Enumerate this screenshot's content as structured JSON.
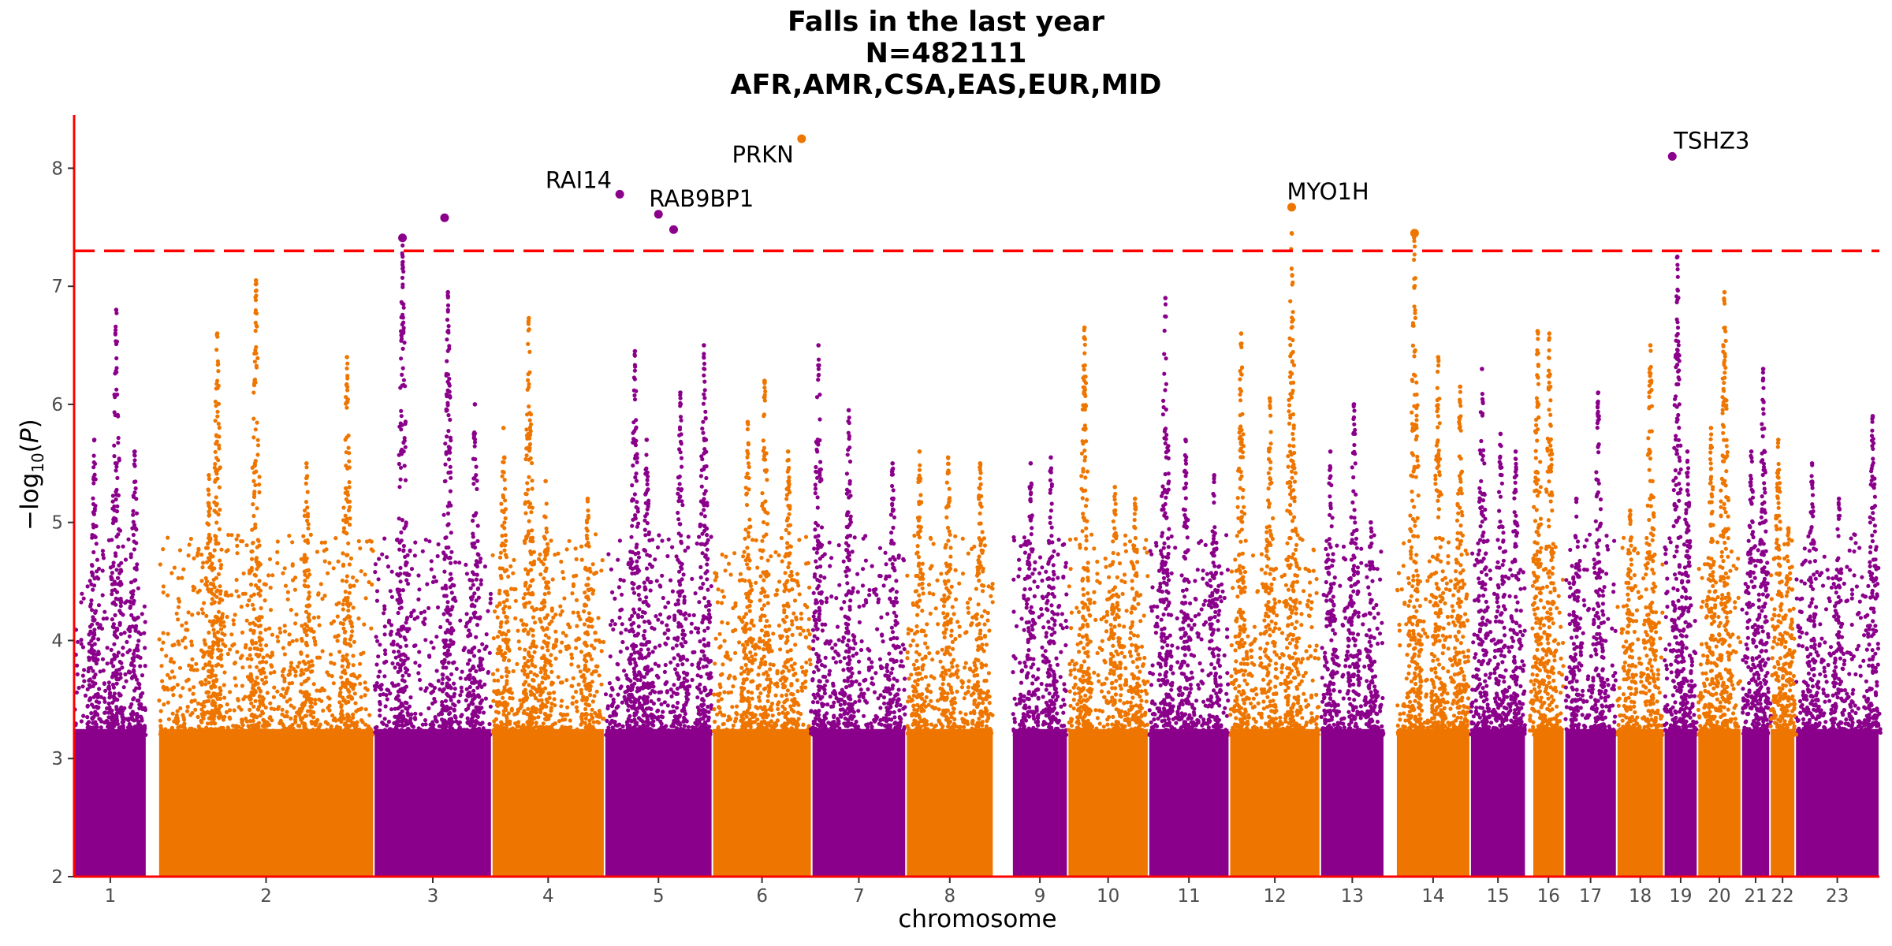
{
  "chart_data": {
    "type": "scatter",
    "subtype": "manhattan",
    "title": [
      "Falls in the last year",
      "N=482111",
      "AFR,AMR,CSA,EAS,EUR,MID"
    ],
    "xlabel": "chromosome",
    "ylabel": "−log10(P)",
    "ylim": [
      2,
      8.45
    ],
    "yticks": [
      2,
      3,
      4,
      5,
      6,
      7,
      8
    ],
    "significance_threshold": 7.3,
    "colors": {
      "odd": "#8B008B",
      "even": "#EE7600",
      "threshold": "#FF0000",
      "axis": "#FF0000"
    },
    "chromosomes": [
      {
        "label": "1",
        "x0": 0,
        "x1": 4.3,
        "max": 6.8
      },
      {
        "label": "2",
        "x0": 5.0,
        "x1": 17.8,
        "max": 7.05
      },
      {
        "label": "3",
        "x0": 17.8,
        "x1": 24.8,
        "max": 7.6
      },
      {
        "label": "4",
        "x0": 24.8,
        "x1": 31.5,
        "max": 6.8
      },
      {
        "label": "5",
        "x0": 31.5,
        "x1": 37.9,
        "max": 7.8
      },
      {
        "label": "6",
        "x0": 37.9,
        "x1": 43.8,
        "max": 8.25
      },
      {
        "label": "7",
        "x0": 43.8,
        "x1": 49.4,
        "max": 6.5
      },
      {
        "label": "8",
        "x0": 49.4,
        "x1": 54.6,
        "max": 5.6
      },
      {
        "label": "9",
        "x0": 55.7,
        "x1": 59.0,
        "max": 5.6
      },
      {
        "label": "10",
        "x0": 59.0,
        "x1": 63.8,
        "max": 6.65
      },
      {
        "label": "11",
        "x0": 63.8,
        "x1": 68.6,
        "max": 6.9
      },
      {
        "label": "12",
        "x0": 68.6,
        "x1": 74.0,
        "max": 7.65
      },
      {
        "label": "13",
        "x0": 74.0,
        "x1": 77.8,
        "max": 6.0
      },
      {
        "label": "14",
        "x0": 78.5,
        "x1": 82.9,
        "max": 7.45
      },
      {
        "label": "15",
        "x0": 82.9,
        "x1": 86.2,
        "max": 6.3
      },
      {
        "label": "16",
        "x0": 86.6,
        "x1": 88.5,
        "max": 6.6
      },
      {
        "label": "17",
        "x0": 88.5,
        "x1": 91.6,
        "max": 6.1
      },
      {
        "label": "18",
        "x0": 91.6,
        "x1": 94.4,
        "max": 6.5
      },
      {
        "label": "19",
        "x0": 94.4,
        "x1": 96.4,
        "max": 8.1
      },
      {
        "label": "20",
        "x0": 96.4,
        "x1": 99.0,
        "max": 6.95
      },
      {
        "label": "21",
        "x0": 99.0,
        "x1": 100.7,
        "max": 6.3
      },
      {
        "label": "22",
        "x0": 100.7,
        "x1": 102.2,
        "max": 5.7
      },
      {
        "label": "23",
        "x0": 102.2,
        "x1": 107.2,
        "max": 5.9
      }
    ],
    "peaks": [
      {
        "chr": "1",
        "x": 2.5,
        "y": 6.8
      },
      {
        "chr": "1",
        "x": 1.2,
        "y": 5.7
      },
      {
        "chr": "1",
        "x": 3.6,
        "y": 5.6
      },
      {
        "chr": "2",
        "x": 8.0,
        "y": 5.4
      },
      {
        "chr": "2",
        "x": 10.8,
        "y": 7.05
      },
      {
        "chr": "2",
        "x": 8.5,
        "y": 6.6
      },
      {
        "chr": "2",
        "x": 13.8,
        "y": 5.5
      },
      {
        "chr": "2",
        "x": 16.2,
        "y": 6.4
      },
      {
        "chr": "3",
        "x": 19.5,
        "y": 7.4
      },
      {
        "chr": "3",
        "x": 22.2,
        "y": 6.95
      },
      {
        "chr": "3",
        "x": 23.8,
        "y": 6.0
      },
      {
        "chr": "4",
        "x": 25.5,
        "y": 5.8
      },
      {
        "chr": "4",
        "x": 27.0,
        "y": 6.73
      },
      {
        "chr": "4",
        "x": 28.0,
        "y": 5.35
      },
      {
        "chr": "4",
        "x": 30.5,
        "y": 5.2
      },
      {
        "chr": "5",
        "x": 33.3,
        "y": 6.45
      },
      {
        "chr": "5",
        "x": 34.0,
        "y": 5.7
      },
      {
        "chr": "5",
        "x": 36.0,
        "y": 6.1
      },
      {
        "chr": "5",
        "x": 37.4,
        "y": 6.5
      },
      {
        "chr": "6",
        "x": 40.0,
        "y": 5.85
      },
      {
        "chr": "6",
        "x": 41.0,
        "y": 6.2
      },
      {
        "chr": "6",
        "x": 42.4,
        "y": 5.6
      },
      {
        "chr": "7",
        "x": 44.2,
        "y": 6.5
      },
      {
        "chr": "7",
        "x": 46.0,
        "y": 5.95
      },
      {
        "chr": "7",
        "x": 48.6,
        "y": 5.5
      },
      {
        "chr": "8",
        "x": 50.2,
        "y": 5.6
      },
      {
        "chr": "8",
        "x": 51.9,
        "y": 5.55
      },
      {
        "chr": "8",
        "x": 53.8,
        "y": 5.5
      },
      {
        "chr": "9",
        "x": 56.8,
        "y": 5.5
      },
      {
        "chr": "9",
        "x": 58.0,
        "y": 5.55
      },
      {
        "chr": "10",
        "x": 60.0,
        "y": 6.65
      },
      {
        "chr": "10",
        "x": 61.8,
        "y": 5.3
      },
      {
        "chr": "10",
        "x": 63.0,
        "y": 5.2
      },
      {
        "chr": "11",
        "x": 64.8,
        "y": 6.9
      },
      {
        "chr": "11",
        "x": 66.0,
        "y": 5.7
      },
      {
        "chr": "11",
        "x": 67.7,
        "y": 5.4
      },
      {
        "chr": "12",
        "x": 69.3,
        "y": 6.6
      },
      {
        "chr": "12",
        "x": 71.0,
        "y": 6.05
      },
      {
        "chr": "12",
        "x": 72.3,
        "y": 7.45
      },
      {
        "chr": "13",
        "x": 74.6,
        "y": 5.6
      },
      {
        "chr": "13",
        "x": 76.0,
        "y": 6.0
      },
      {
        "chr": "13",
        "x": 77.0,
        "y": 5.0
      },
      {
        "chr": "14",
        "x": 79.6,
        "y": 7.45
      },
      {
        "chr": "14",
        "x": 81.0,
        "y": 6.4
      },
      {
        "chr": "14",
        "x": 82.3,
        "y": 6.15
      },
      {
        "chr": "15",
        "x": 83.6,
        "y": 6.3
      },
      {
        "chr": "15",
        "x": 84.7,
        "y": 5.75
      },
      {
        "chr": "15",
        "x": 85.6,
        "y": 5.6
      },
      {
        "chr": "16",
        "x": 86.9,
        "y": 6.62
      },
      {
        "chr": "16",
        "x": 87.6,
        "y": 6.6
      },
      {
        "chr": "17",
        "x": 89.2,
        "y": 5.2
      },
      {
        "chr": "17",
        "x": 90.5,
        "y": 6.1
      },
      {
        "chr": "18",
        "x": 92.4,
        "y": 5.1
      },
      {
        "chr": "18",
        "x": 93.6,
        "y": 6.5
      },
      {
        "chr": "19",
        "x": 95.2,
        "y": 7.25
      },
      {
        "chr": "19",
        "x": 95.8,
        "y": 5.6
      },
      {
        "chr": "20",
        "x": 97.2,
        "y": 5.8
      },
      {
        "chr": "20",
        "x": 98.0,
        "y": 6.95
      },
      {
        "chr": "21",
        "x": 99.6,
        "y": 5.6
      },
      {
        "chr": "21",
        "x": 100.3,
        "y": 6.3
      },
      {
        "chr": "22",
        "x": 101.2,
        "y": 5.7
      },
      {
        "chr": "22",
        "x": 101.8,
        "y": 4.95
      },
      {
        "chr": "23",
        "x": 103.2,
        "y": 5.5
      },
      {
        "chr": "23",
        "x": 104.8,
        "y": 5.2
      },
      {
        "chr": "23",
        "x": 106.8,
        "y": 5.9
      }
    ],
    "top_hits": [
      {
        "label": "RAI14",
        "chr": "5",
        "x": 32.4,
        "y": 7.78,
        "label_dx": -10,
        "label_dy": -8,
        "anchor": "end"
      },
      {
        "label": "RAB9BP1",
        "chr": "5",
        "x": 34.7,
        "y": 7.61,
        "label_dx": -12,
        "label_dy": -10,
        "anchor": "start"
      },
      {
        "label": "PRKN",
        "chr": "6",
        "x": 43.2,
        "y": 8.25,
        "label_dx": -10,
        "label_dy": 30,
        "anchor": "end"
      },
      {
        "label": "MYO1H",
        "chr": "12",
        "x": 72.3,
        "y": 7.67,
        "label_dx": -6,
        "label_dy": -10,
        "anchor": "start"
      },
      {
        "label": "TSHZ3",
        "chr": "19",
        "x": 94.9,
        "y": 8.1,
        "label_dx": 2,
        "label_dy": -10,
        "anchor": "start"
      }
    ],
    "extra_hits": [
      {
        "chr": "3",
        "x": 19.5,
        "y": 7.41
      },
      {
        "chr": "3",
        "x": 22.0,
        "y": 7.58
      },
      {
        "chr": "5",
        "x": 35.6,
        "y": 7.48
      },
      {
        "chr": "14",
        "x": 79.6,
        "y": 7.45
      }
    ]
  }
}
